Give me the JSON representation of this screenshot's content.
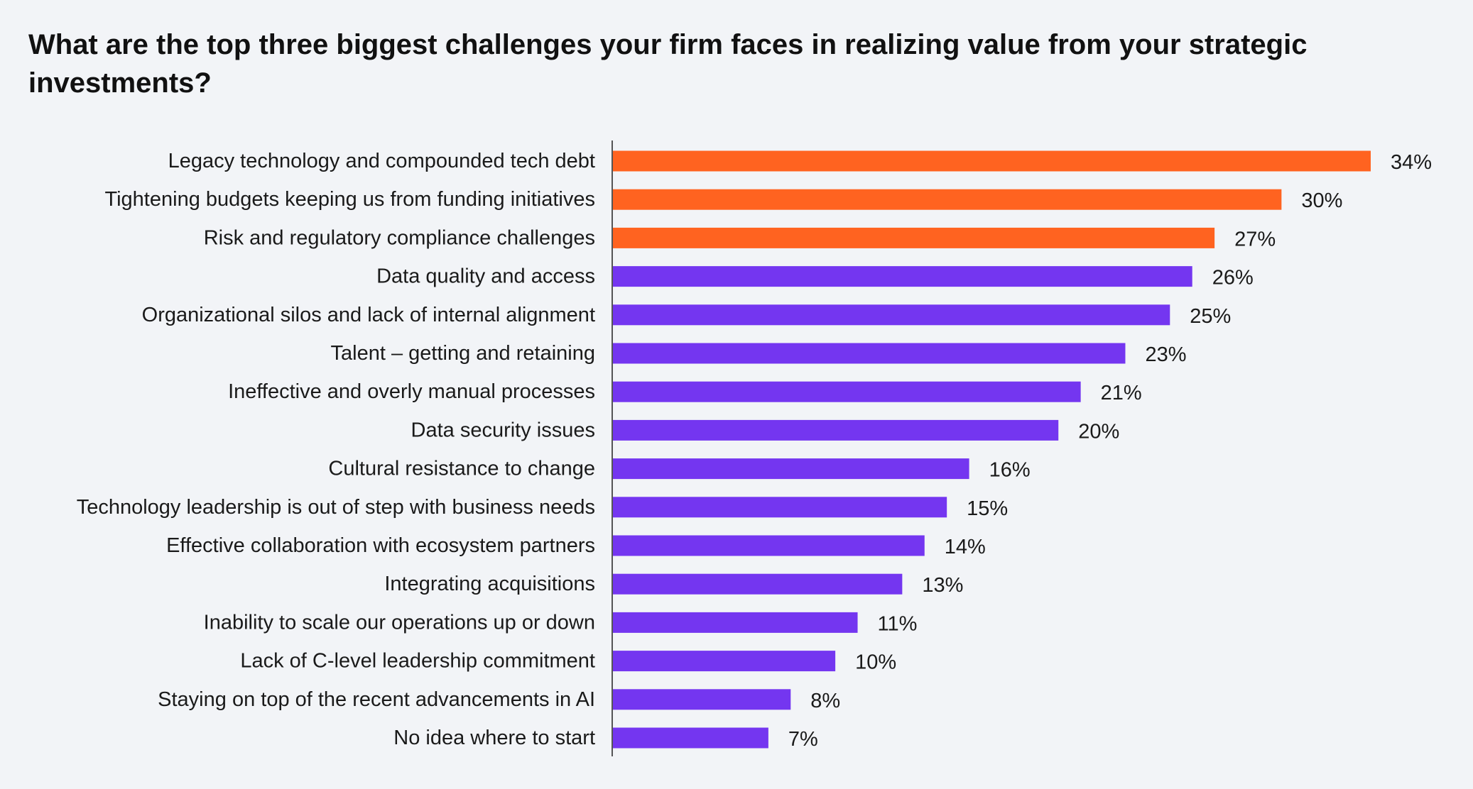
{
  "title": "What are the top three biggest challenges your firm faces in realizing value from your strategic investments?",
  "colors": {
    "background": "#f2f4f7",
    "highlight": "#ff6320",
    "default": "#7436f0",
    "axis": "#555555"
  },
  "chart_data": {
    "type": "bar",
    "orientation": "horizontal",
    "title": "What are the top three biggest challenges your firm faces in realizing value from your strategic investments?",
    "xlabel": "",
    "ylabel": "",
    "unit": "%",
    "xlim": [
      0,
      34
    ],
    "grid": false,
    "legend": "none",
    "highlighted_top_n": 3,
    "categories": [
      "Legacy technology and compounded tech debt",
      "Tightening budgets keeping us from funding initiatives",
      "Risk and regulatory compliance challenges",
      "Data quality and access",
      "Organizational silos and lack of internal alignment",
      "Talent – getting and retaining",
      "Ineffective and overly manual processes",
      "Data security issues",
      "Cultural resistance to change",
      "Technology leadership is out of step with business needs",
      "Effective collaboration with ecosystem partners",
      "Integrating acquisitions",
      "Inability to scale our operations up or down",
      "Lack of C-level leadership commitment",
      "Staying on top of the recent advancements in AI",
      "No idea where to start"
    ],
    "values": [
      34,
      30,
      27,
      26,
      25,
      23,
      21,
      20,
      16,
      15,
      14,
      13,
      11,
      10,
      8,
      7
    ],
    "value_labels": [
      "34%",
      "30%",
      "27%",
      "26%",
      "25%",
      "23%",
      "21%",
      "20%",
      "16%",
      "15%",
      "14%",
      "13%",
      "11%",
      "10%",
      "8%",
      "7%"
    ]
  }
}
